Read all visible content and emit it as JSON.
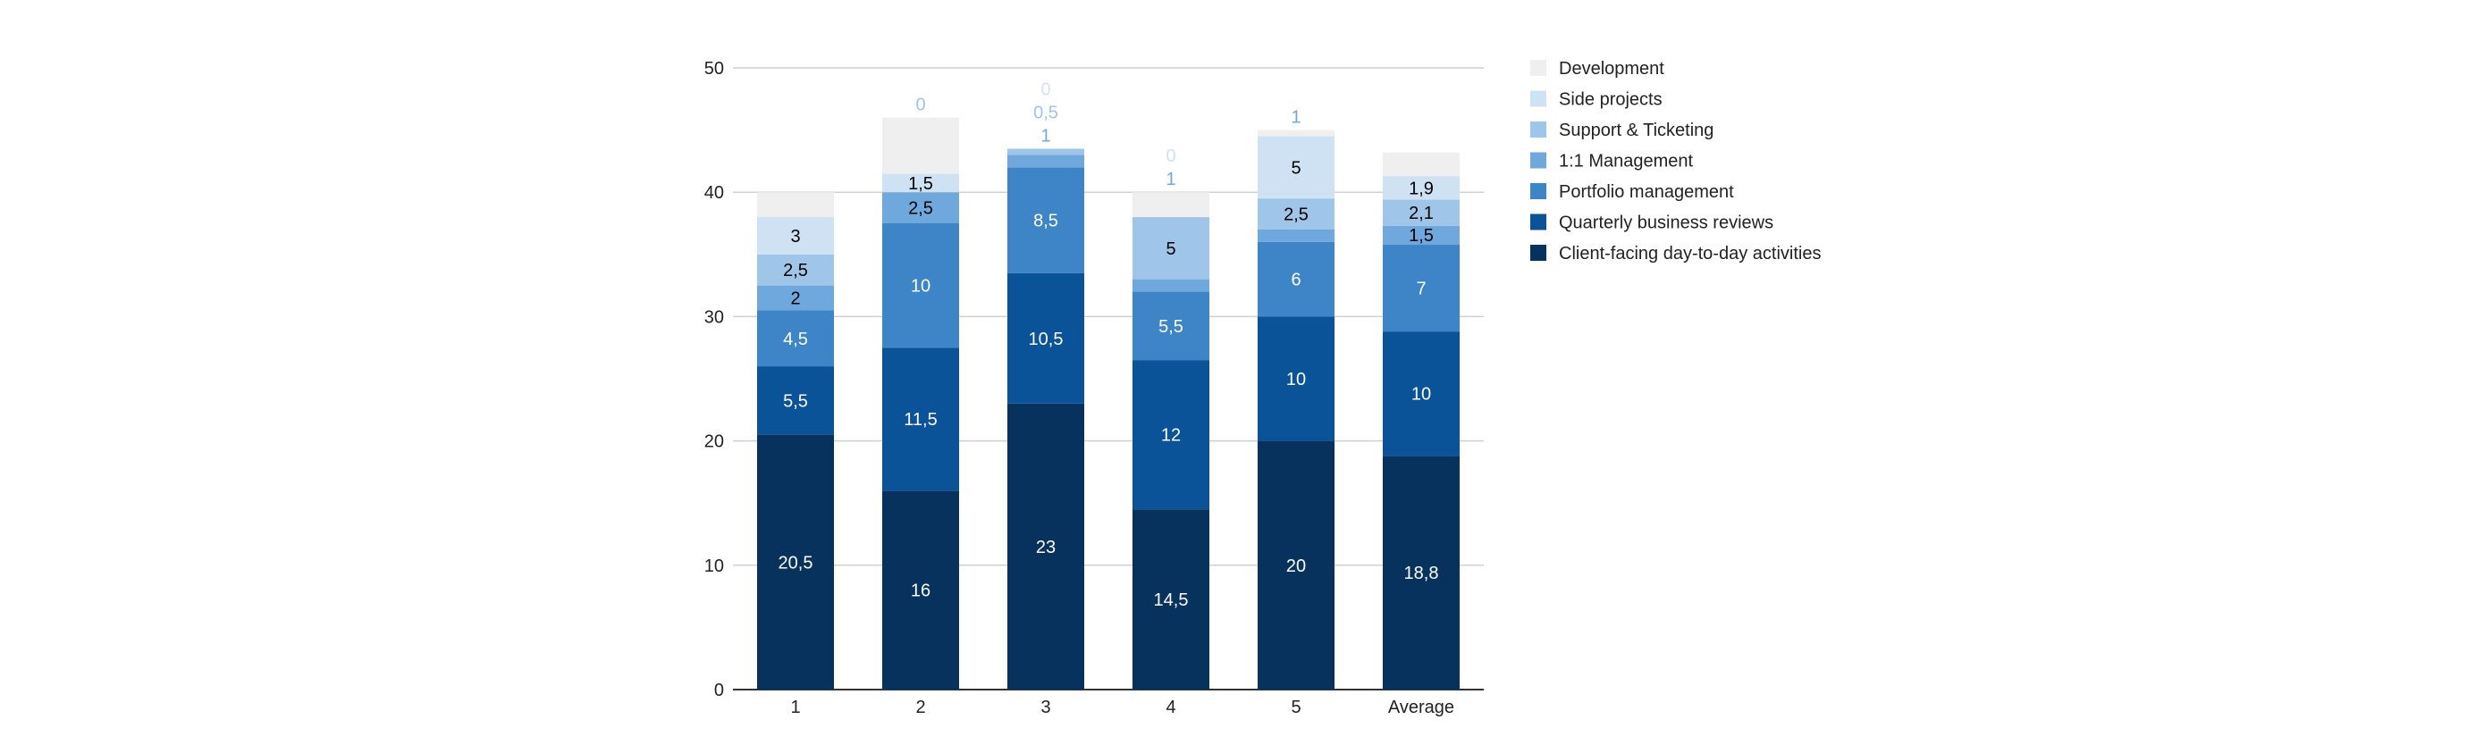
{
  "chart_data": {
    "type": "bar",
    "stacked": true,
    "title": "",
    "xlabel": "",
    "ylabel": "",
    "ylim": [
      0,
      50
    ],
    "yticks": [
      0,
      10,
      20,
      30,
      40,
      50
    ],
    "grid": true,
    "legend_position": "right",
    "categories": [
      "1",
      "2",
      "3",
      "4",
      "5",
      "Average"
    ],
    "series": [
      {
        "name": "Client-facing day-to-day activities",
        "color": "#08325e",
        "label_color": "#ffffff",
        "values": [
          20.5,
          16,
          23,
          14.5,
          20,
          18.8
        ],
        "labels": [
          "20,5",
          "16",
          "23",
          "14,5",
          "20",
          "18,8"
        ]
      },
      {
        "name": "Quarterly business reviews",
        "color": "#0b5399",
        "label_color": "#ffffff",
        "values": [
          5.5,
          11.5,
          10.5,
          12,
          10,
          10
        ],
        "labels": [
          "5,5",
          "11,5",
          "10,5",
          "12",
          "10",
          "10"
        ]
      },
      {
        "name": "Portfolio management",
        "color": "#3d85c6",
        "label_color": "#ffffff",
        "values": [
          4.5,
          10,
          8.5,
          5.5,
          6,
          7
        ],
        "labels": [
          "4,5",
          "10",
          "8,5",
          "5,5",
          "6",
          "7"
        ]
      },
      {
        "name": "1:1 Management",
        "color": "#6fa8dc",
        "label_color": "#000000",
        "values": [
          2,
          2.5,
          1,
          1,
          1,
          1.5
        ],
        "labels": [
          "2",
          "2,5",
          "1",
          "1",
          "1",
          "1,5"
        ]
      },
      {
        "name": "Support & Ticketing",
        "color": "#9fc5e8",
        "label_color": "#000000",
        "values": [
          2.5,
          0,
          0.5,
          5,
          2.5,
          2.1
        ],
        "labels": [
          "2,5",
          "0",
          "0,5",
          "5",
          "2,5",
          "2,1"
        ]
      },
      {
        "name": "Side projects",
        "color": "#cfe2f3",
        "label_color": "#000000",
        "values": [
          3,
          1.5,
          0,
          0,
          5,
          1.9
        ],
        "labels": [
          "3",
          "1,5",
          "0",
          "0",
          "5",
          "1,9"
        ]
      },
      {
        "name": "Development",
        "color": "#efefef",
        "label_color": "#000000",
        "values": [
          2,
          4.5,
          0,
          2,
          0.5,
          1.9
        ],
        "labels": [
          "",
          "",
          "",
          "",
          "",
          ""
        ]
      }
    ]
  }
}
